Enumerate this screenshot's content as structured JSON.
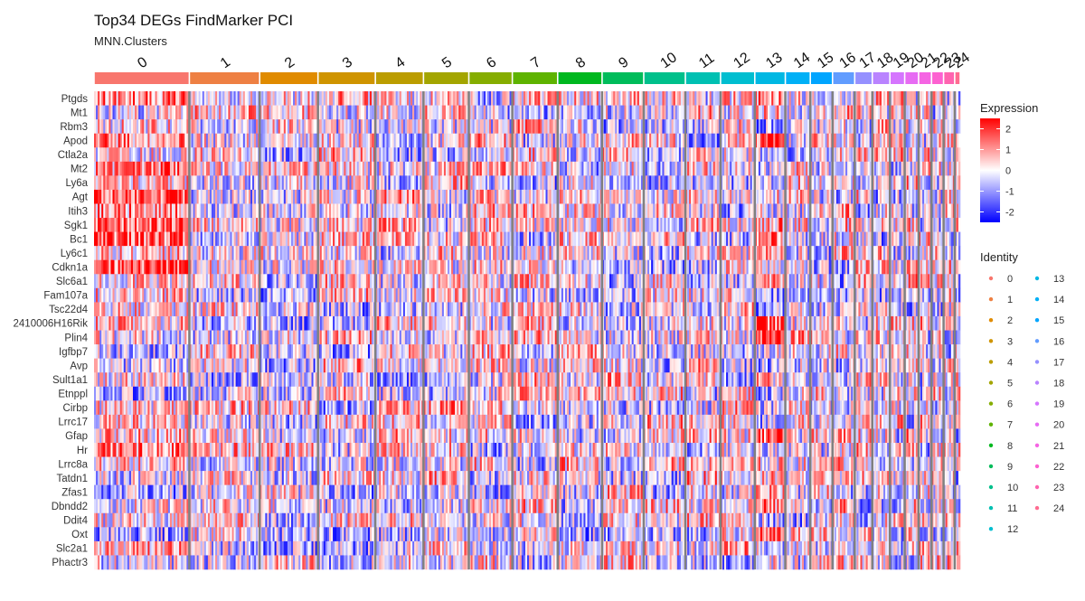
{
  "chart_data": {
    "type": "heatmap",
    "title": "Top34 DEGs FindMarker PCI",
    "subtitle": "MNN.Clusters",
    "genes": [
      "Ptgds",
      "Mt1",
      "Rbm3",
      "Apod",
      "Ctla2a",
      "Mt2",
      "Ly6a",
      "Agt",
      "Itih3",
      "Sgk1",
      "Bc1",
      "Ly6c1",
      "Cdkn1a",
      "Slc6a1",
      "Fam107a",
      "Tsc22d4",
      "2410006H16Rik",
      "Plin4",
      "Igfbp7",
      "Avp",
      "Sult1a1",
      "Etnppl",
      "Cirbp",
      "Lrrc17",
      "Gfap",
      "Hr",
      "Lrrc8a",
      "Tatdn1",
      "Zfas1",
      "Dbndd2",
      "Ddit4",
      "Oxt",
      "Slc2a1",
      "Phactr3"
    ],
    "clusters": [
      "0",
      "1",
      "2",
      "3",
      "4",
      "5",
      "6",
      "7",
      "8",
      "9",
      "10",
      "11",
      "12",
      "13",
      "14",
      "15",
      "16",
      "17",
      "18",
      "19",
      "20",
      "21",
      "22",
      "23",
      "24"
    ],
    "cluster_sizes": [
      103,
      76,
      63,
      62,
      52,
      49,
      47,
      49,
      48,
      45,
      45,
      38,
      37,
      33,
      27,
      24,
      24,
      19,
      19,
      16,
      15,
      14,
      13,
      12,
      6
    ],
    "cluster_colors": [
      "#F8766D",
      "#EE8043",
      "#E08B00",
      "#CF9400",
      "#BB9D00",
      "#A3A500",
      "#85AD00",
      "#5EB300",
      "#00B81F",
      "#00BC5A",
      "#00C08B",
      "#00C0B2",
      "#00BED0",
      "#00B8E3",
      "#00B0F6",
      "#00A5FF",
      "#619CFF",
      "#9590FF",
      "#B983FF",
      "#D575FE",
      "#E76BF3",
      "#F564E3",
      "#FD61D1",
      "#FF64B0",
      "#FF6C91"
    ],
    "legend": {
      "expression": {
        "title": "Expression",
        "ticks": [
          2,
          1,
          0,
          -1,
          -2
        ],
        "tick_labels": [
          "2",
          "1",
          "0",
          "-1",
          "-2"
        ],
        "range": [
          -2.5,
          2.5
        ],
        "low_color": "#0000FF",
        "mid_color": "#FFFFFF",
        "high_color": "#FF0000"
      },
      "identity": {
        "title": "Identity"
      }
    },
    "separator_color": "#808080"
  }
}
